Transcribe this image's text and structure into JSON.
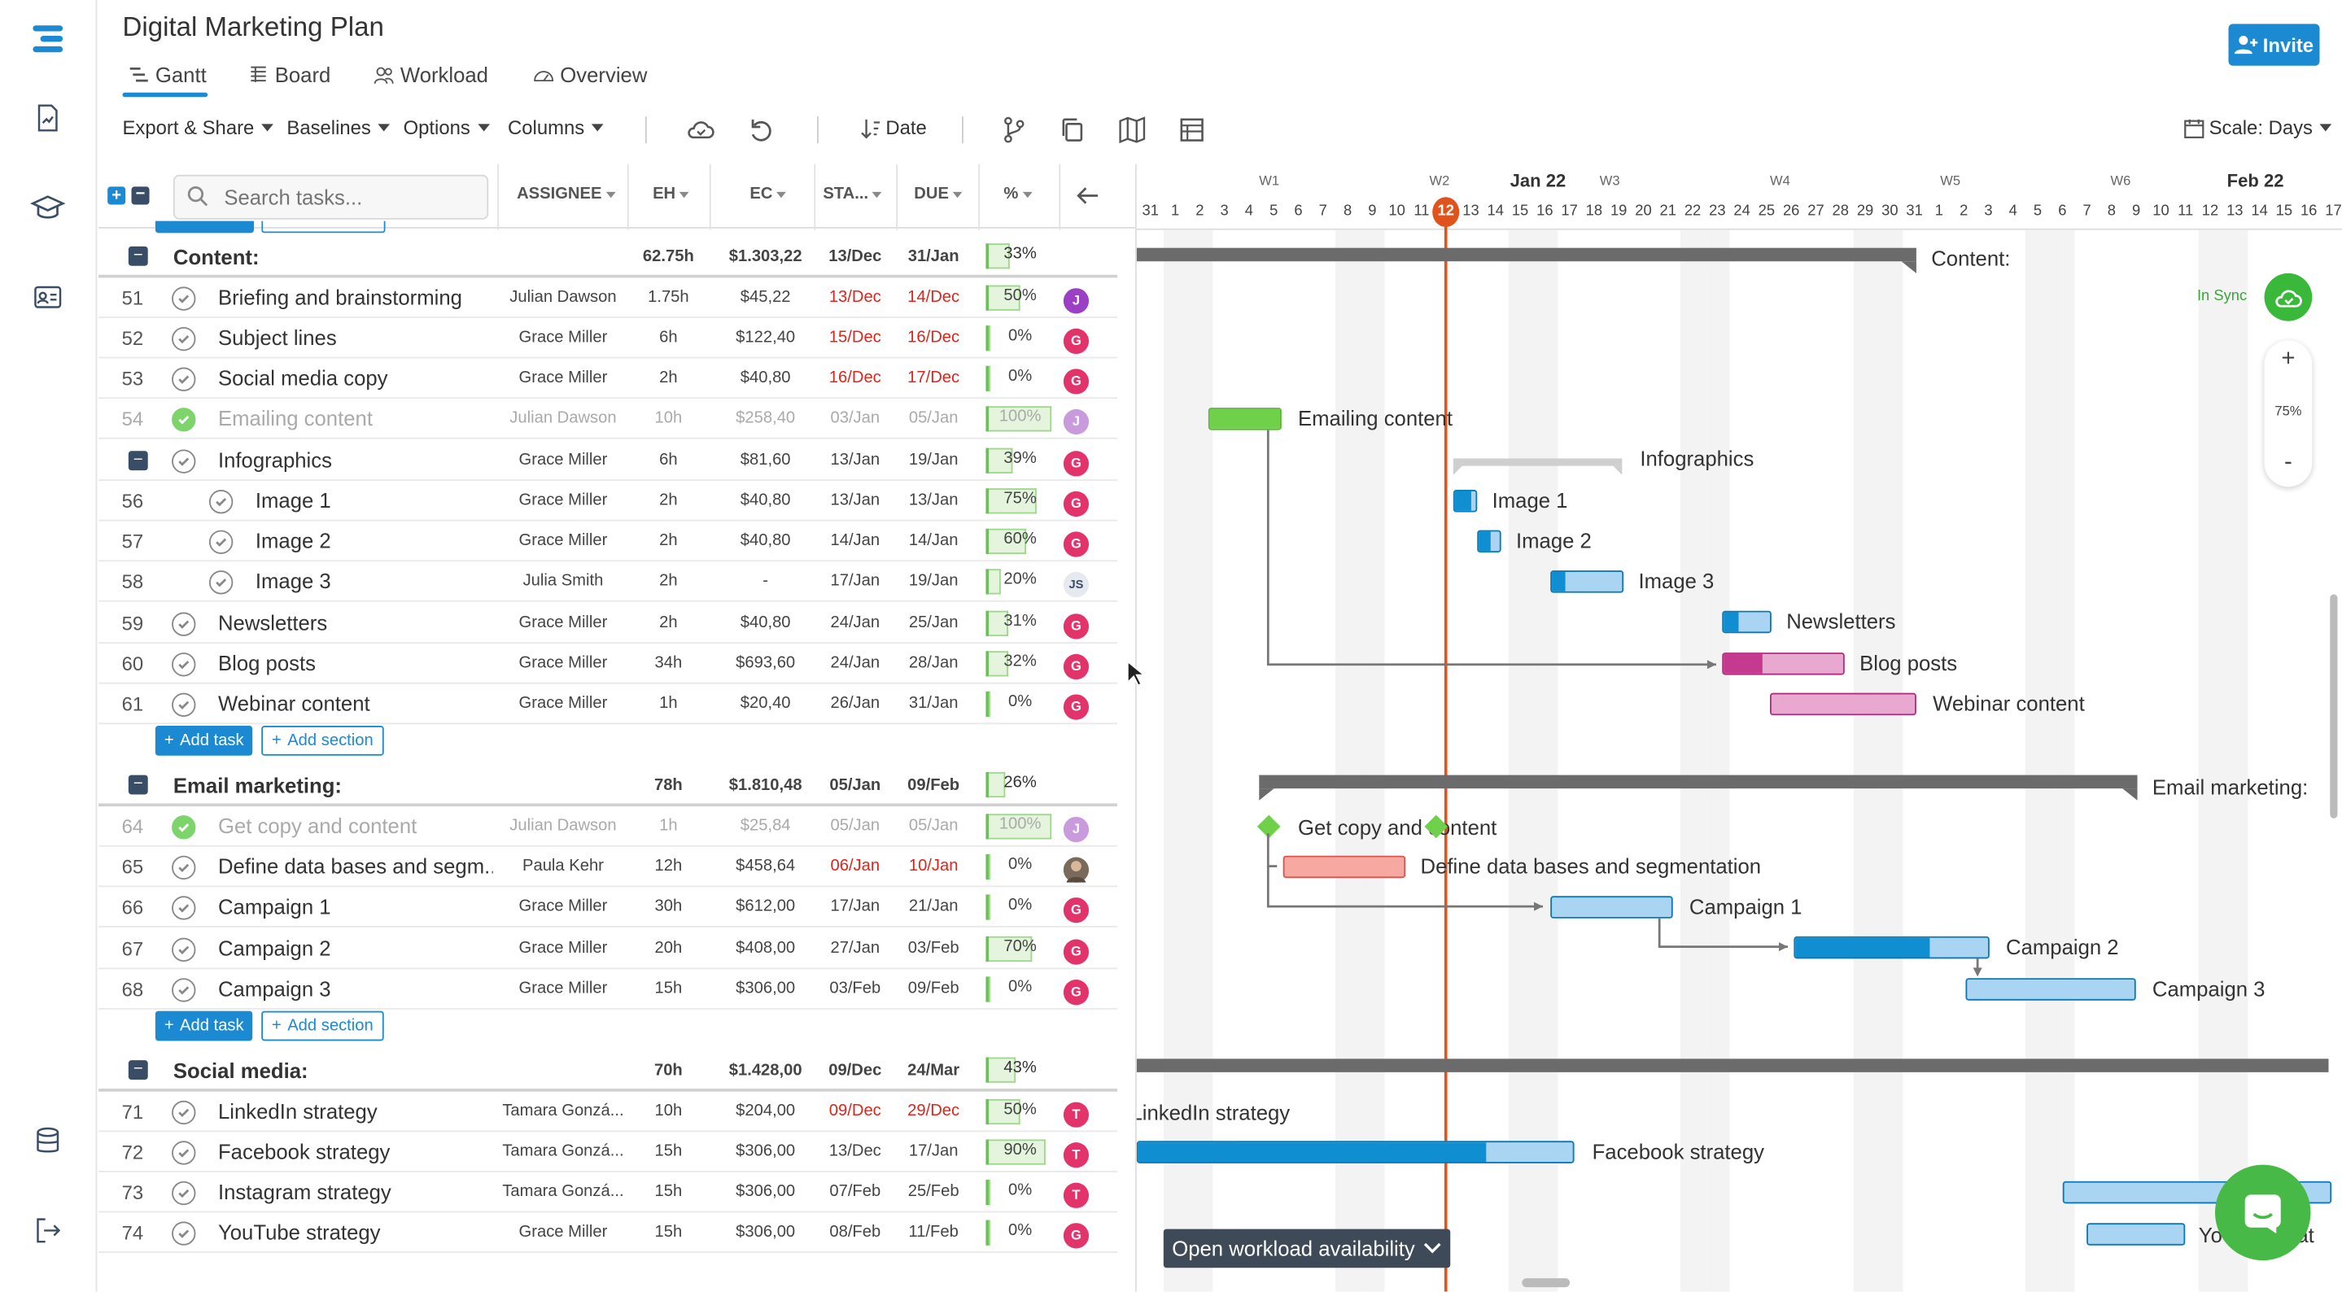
{
  "project": {
    "title": "Digital Marketing Plan"
  },
  "tabs": [
    {
      "label": "Gantt"
    },
    {
      "label": "Board"
    },
    {
      "label": "Workload"
    },
    {
      "label": "Overview"
    }
  ],
  "invite_label": "Invite",
  "toolbar": {
    "export": "Export & Share",
    "baselines": "Baselines",
    "options": "Options",
    "columns": "Columns",
    "date_sort": "Date",
    "scale": "Scale: Days"
  },
  "search": {
    "placeholder": "Search tasks..."
  },
  "columns": {
    "assignee": "ASSIGNEE",
    "eh": "EH",
    "ec": "EC",
    "start": "STA...",
    "due": "DUE",
    "pct": "%"
  },
  "sections": [
    {
      "name": "Content:",
      "eh": "62.75h",
      "ec": "$1.303,22",
      "start": "13/Dec",
      "due": "31/Jan",
      "pct": "33%",
      "pct_value": 33
    },
    {
      "name": "Email marketing:",
      "eh": "78h",
      "ec": "$1.810,48",
      "start": "05/Jan",
      "due": "09/Feb",
      "pct": "26%",
      "pct_value": 26
    },
    {
      "name": "Social media:",
      "eh": "70h",
      "ec": "$1.428,00",
      "start": "09/Dec",
      "due": "24/Mar",
      "pct": "43%",
      "pct_value": 43
    }
  ],
  "add_task_label": "Add task",
  "add_section_label": "Add section",
  "tasks": [
    {
      "num": "51",
      "name": "Briefing and brainstorming",
      "assignee": "Julian Dawson",
      "eh": "1.75h",
      "ec": "$45,22",
      "start": "13/Dec",
      "due": "14/Dec",
      "pct": "50%",
      "pct_value": 50,
      "avatar": "J",
      "avatar_color": "#9b3fc4"
    },
    {
      "num": "52",
      "name": "Subject lines",
      "assignee": "Grace Miller",
      "eh": "6h",
      "ec": "$122,40",
      "start": "15/Dec",
      "due": "16/Dec",
      "pct": "0%",
      "pct_value": 0,
      "avatar": "G",
      "avatar_color": "#e2336b"
    },
    {
      "num": "53",
      "name": "Social media copy",
      "assignee": "Grace Miller",
      "eh": "2h",
      "ec": "$40,80",
      "start": "16/Dec",
      "due": "17/Dec",
      "pct": "0%",
      "pct_value": 0,
      "avatar": "G",
      "avatar_color": "#e2336b"
    },
    {
      "num": "54",
      "name": "Emailing content",
      "assignee": "Julian Dawson",
      "eh": "10h",
      "ec": "$258,40",
      "start": "03/Jan",
      "due": "05/Jan",
      "pct": "100%",
      "pct_value": 100,
      "avatar": "J",
      "avatar_color": "#c99bdc"
    },
    {
      "num": "",
      "name": "Infographics",
      "assignee": "Grace Miller",
      "eh": "6h",
      "ec": "$81,60",
      "start": "13/Jan",
      "due": "19/Jan",
      "pct": "39%",
      "pct_value": 39,
      "avatar": "G",
      "avatar_color": "#e2336b"
    },
    {
      "num": "56",
      "name": "Image 1",
      "assignee": "Grace Miller",
      "eh": "2h",
      "ec": "$40,80",
      "start": "13/Jan",
      "due": "13/Jan",
      "pct": "75%",
      "pct_value": 75,
      "avatar": "G",
      "avatar_color": "#e2336b"
    },
    {
      "num": "57",
      "name": "Image 2",
      "assignee": "Grace Miller",
      "eh": "2h",
      "ec": "$40,80",
      "start": "14/Jan",
      "due": "14/Jan",
      "pct": "60%",
      "pct_value": 60,
      "avatar": "G",
      "avatar_color": "#e2336b"
    },
    {
      "num": "58",
      "name": "Image 3",
      "assignee": "Julia Smith",
      "eh": "2h",
      "ec": "-",
      "start": "17/Jan",
      "due": "19/Jan",
      "pct": "20%",
      "pct_value": 20,
      "avatar": "JS",
      "avatar_color": "#e6e9ef"
    },
    {
      "num": "59",
      "name": "Newsletters",
      "assignee": "Grace Miller",
      "eh": "2h",
      "ec": "$40,80",
      "start": "24/Jan",
      "due": "25/Jan",
      "pct": "31%",
      "pct_value": 31,
      "avatar": "G",
      "avatar_color": "#e2336b"
    },
    {
      "num": "60",
      "name": "Blog posts",
      "assignee": "Grace Miller",
      "eh": "34h",
      "ec": "$693,60",
      "start": "24/Jan",
      "due": "28/Jan",
      "pct": "32%",
      "pct_value": 32,
      "avatar": "G",
      "avatar_color": "#e2336b"
    },
    {
      "num": "61",
      "name": "Webinar content",
      "assignee": "Grace Miller",
      "eh": "1h",
      "ec": "$20,40",
      "start": "26/Jan",
      "due": "31/Jan",
      "pct": "0%",
      "pct_value": 0,
      "avatar": "G",
      "avatar_color": "#e2336b"
    },
    {
      "num": "64",
      "name": "Get copy and content",
      "assignee": "Julian Dawson",
      "eh": "1h",
      "ec": "$25,84",
      "start": "05/Jan",
      "due": "05/Jan",
      "pct": "100%",
      "pct_value": 100,
      "avatar": "J",
      "avatar_color": "#c99bdc"
    },
    {
      "num": "65",
      "name": "Define data bases and segm...",
      "assignee": "Paula Kehr",
      "eh": "12h",
      "ec": "$458,64",
      "start": "06/Jan",
      "due": "10/Jan",
      "pct": "0%",
      "pct_value": 0,
      "avatar": "",
      "avatar_color": "#7a6a5c"
    },
    {
      "num": "66",
      "name": "Campaign 1",
      "assignee": "Grace Miller",
      "eh": "30h",
      "ec": "$612,00",
      "start": "17/Jan",
      "due": "21/Jan",
      "pct": "0%",
      "pct_value": 0,
      "avatar": "G",
      "avatar_color": "#e2336b"
    },
    {
      "num": "67",
      "name": "Campaign 2",
      "assignee": "Grace Miller",
      "eh": "20h",
      "ec": "$408,00",
      "start": "27/Jan",
      "due": "03/Feb",
      "pct": "70%",
      "pct_value": 70,
      "avatar": "G",
      "avatar_color": "#e2336b"
    },
    {
      "num": "68",
      "name": "Campaign 3",
      "assignee": "Grace Miller",
      "eh": "15h",
      "ec": "$306,00",
      "start": "03/Feb",
      "due": "09/Feb",
      "pct": "0%",
      "pct_value": 0,
      "avatar": "G",
      "avatar_color": "#e2336b"
    },
    {
      "num": "71",
      "name": "LinkedIn strategy",
      "assignee": "Tamara Gonzá...",
      "eh": "10h",
      "ec": "$204,00",
      "start": "09/Dec",
      "due": "29/Dec",
      "pct": "50%",
      "pct_value": 50,
      "avatar": "T",
      "avatar_color": "#e2336b"
    },
    {
      "num": "72",
      "name": "Facebook strategy",
      "assignee": "Tamara Gonzá...",
      "eh": "15h",
      "ec": "$306,00",
      "start": "13/Dec",
      "due": "17/Jan",
      "pct": "90%",
      "pct_value": 90,
      "avatar": "T",
      "avatar_color": "#e2336b"
    },
    {
      "num": "73",
      "name": "Instagram strategy",
      "assignee": "Tamara Gonzá...",
      "eh": "15h",
      "ec": "$306,00",
      "start": "07/Feb",
      "due": "25/Feb",
      "pct": "0%",
      "pct_value": 0,
      "avatar": "T",
      "avatar_color": "#e2336b"
    },
    {
      "num": "74",
      "name": "YouTube strategy",
      "assignee": "Grace Miller",
      "eh": "15h",
      "ec": "$306,00",
      "start": "08/Feb",
      "due": "11/Feb",
      "pct": "0%",
      "pct_value": 0,
      "avatar": "G",
      "avatar_color": "#e2336b"
    }
  ],
  "timeline": {
    "weeks": [
      "W1",
      "W2",
      "W3",
      "W4",
      "W5",
      "W6"
    ],
    "months": [
      "Jan 22",
      "Feb 22"
    ],
    "days": [
      "31",
      "1",
      "2",
      "3",
      "4",
      "5",
      "6",
      "7",
      "8",
      "9",
      "10",
      "11",
      "12",
      "13",
      "14",
      "15",
      "16",
      "17",
      "18",
      "19",
      "20",
      "21",
      "22",
      "23",
      "24",
      "25",
      "26",
      "27",
      "28",
      "29",
      "30",
      "31",
      "1",
      "2",
      "3",
      "4",
      "5",
      "6",
      "7",
      "8",
      "9",
      "10",
      "11",
      "12",
      "13",
      "14",
      "15",
      "16",
      "17"
    ],
    "today": "12"
  },
  "gantt_labels": {
    "content": "Content:",
    "email": "Email marketing:",
    "in_sync": "In Sync",
    "zoom": "75%",
    "zoom_in": "+",
    "zoom_out": "-",
    "emailing": "Emailing content",
    "infographics": "Infographics",
    "image1": "Image 1",
    "image2": "Image 2",
    "image3": "Image 3",
    "newsletters": "Newsletters",
    "blog": "Blog posts",
    "webinar": "Webinar content",
    "getcopy": "Get copy and content",
    "define": "Define data bases and segmentation",
    "camp1": "Campaign 1",
    "camp2": "Campaign 2",
    "camp3": "Campaign 3",
    "linkedin": "LinkedIn strategy",
    "facebook": "Facebook strategy",
    "youtube_partial": "Yo",
    "youtube_tail": "rat"
  },
  "workload_label": "Open workload availability",
  "colors": {
    "accent": "#1c8ad3",
    "today": "#e0531c",
    "done": "#7cd46b",
    "nav": "#3a4d66"
  }
}
